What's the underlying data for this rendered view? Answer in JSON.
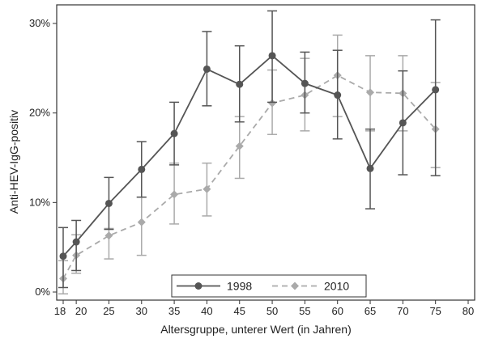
{
  "chart_data": {
    "type": "line",
    "xlabel": "Altersgruppe, unterer Wert (in Jahren)",
    "ylabel": "Anti-HEV-IgG-positiv",
    "xlim": [
      18,
      80
    ],
    "ylim": [
      0,
      30
    ],
    "x_ticks": [
      "18",
      "20",
      "25",
      "30",
      "35",
      "40",
      "45",
      "50",
      "55",
      "60",
      "65",
      "70",
      "75",
      "80"
    ],
    "x_tick_values": [
      18,
      20,
      25,
      30,
      35,
      40,
      45,
      50,
      55,
      60,
      65,
      70,
      75,
      80
    ],
    "y_ticks": [
      "0%",
      "10%",
      "20%",
      "30%"
    ],
    "y_tick_values": [
      0,
      10,
      20,
      30
    ],
    "grid": false,
    "legend": "bottom",
    "series": [
      {
        "name": "1998",
        "color": "#555555",
        "line_style": "solid",
        "marker": "circle",
        "x": [
          18,
          20,
          25,
          30,
          35,
          40,
          45,
          50,
          55,
          60,
          65,
          70,
          75
        ],
        "y": [
          4.0,
          5.6,
          9.9,
          13.7,
          17.7,
          24.9,
          23.2,
          26.4,
          23.3,
          22.0,
          13.8,
          18.9,
          22.6
        ],
        "ci_low": [
          0.5,
          2.4,
          7.0,
          10.6,
          14.2,
          20.8,
          19.0,
          21.2,
          20.0,
          17.1,
          9.3,
          13.1,
          13.0
        ],
        "ci_high": [
          7.2,
          8.0,
          12.8,
          16.8,
          21.2,
          29.1,
          27.5,
          31.4,
          26.8,
          27.0,
          18.2,
          24.7,
          30.4
        ]
      },
      {
        "name": "2010",
        "color": "#aaaaaa",
        "line_style": "dashed",
        "marker": "diamond",
        "x": [
          18,
          20,
          25,
          30,
          35,
          40,
          45,
          50,
          55,
          60,
          65,
          70,
          75
        ],
        "y": [
          1.5,
          4.1,
          6.3,
          7.8,
          10.9,
          11.5,
          16.3,
          21.1,
          22.0,
          24.2,
          22.3,
          22.2,
          18.2
        ],
        "ci_low": [
          -0.2,
          2.1,
          3.7,
          4.1,
          7.6,
          8.5,
          12.7,
          17.6,
          18.0,
          19.6,
          18.0,
          18.0,
          13.9
        ],
        "ci_high": [
          3.5,
          6.4,
          7.1,
          10.6,
          14.4,
          14.4,
          19.6,
          24.8,
          26.1,
          28.7,
          26.4,
          26.4,
          23.4
        ]
      }
    ]
  },
  "theme": {
    "frame_color": "#333333",
    "text_color": "#222222"
  }
}
